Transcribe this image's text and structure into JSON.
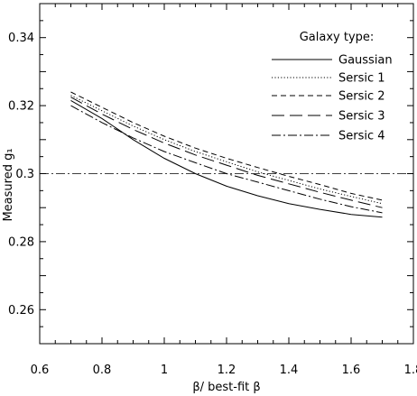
{
  "chart_data": {
    "type": "line",
    "xlabel": "β/ best-fit β",
    "ylabel": "Measured g₁",
    "xlim": [
      0.6,
      1.8
    ],
    "ylim": [
      0.25,
      0.35
    ],
    "x_ticks": [
      0.6,
      0.8,
      1,
      1.2,
      1.4,
      1.6,
      1.8
    ],
    "x_tick_labels": [
      "0.6",
      "0.8",
      "1",
      "1.2",
      "1.4",
      "1.6",
      "1.8"
    ],
    "y_ticks": [
      0.26,
      0.28,
      0.3,
      0.32,
      0.34
    ],
    "y_tick_labels": [
      "0.26",
      "0.28",
      "0.3",
      "0.32",
      "0.34"
    ],
    "legend_title": "Galaxy type:",
    "legend_position": "top-right",
    "reference_line": {
      "y": 0.3,
      "style": "dash-dot"
    },
    "x": [
      0.7,
      0.8,
      0.9,
      1.0,
      1.1,
      1.2,
      1.3,
      1.4,
      1.5,
      1.6,
      1.7
    ],
    "series": [
      {
        "name": "Gaussian",
        "style": "solid",
        "values": [
          0.3215,
          0.3162,
          0.31,
          0.3045,
          0.3,
          0.2963,
          0.2935,
          0.2912,
          0.2895,
          0.288,
          0.2872
        ]
      },
      {
        "name": "Sersic 1",
        "style": "dotted",
        "values": [
          0.323,
          0.3185,
          0.314,
          0.31,
          0.3065,
          0.3035,
          0.3005,
          0.298,
          0.2955,
          0.2933,
          0.2912
        ]
      },
      {
        "name": "Sersic 2",
        "style": "short-dash",
        "values": [
          0.324,
          0.3195,
          0.315,
          0.311,
          0.3075,
          0.3045,
          0.3018,
          0.2992,
          0.2968,
          0.2942,
          0.2922
        ]
      },
      {
        "name": "Sersic 3",
        "style": "long-dash",
        "values": [
          0.3225,
          0.3175,
          0.313,
          0.309,
          0.3055,
          0.3025,
          0.2995,
          0.297,
          0.2945,
          0.2922,
          0.29
        ]
      },
      {
        "name": "Sersic 4",
        "style": "dash-dot",
        "values": [
          0.32,
          0.315,
          0.3105,
          0.3065,
          0.3032,
          0.3,
          0.2975,
          0.295,
          0.2925,
          0.2903,
          0.2885
        ]
      }
    ]
  }
}
